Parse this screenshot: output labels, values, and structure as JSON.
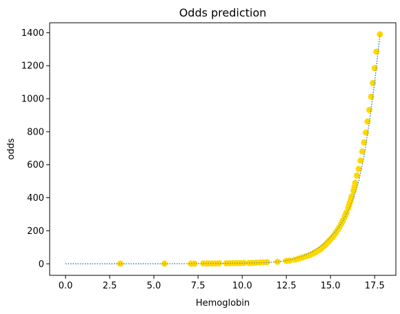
{
  "chart_data": {
    "type": "scatter",
    "title": "Odds prediction",
    "xlabel": "Hemoglobin",
    "ylabel": "odds",
    "xlim": [
      -0.9,
      18.7
    ],
    "ylim": [
      -70,
      1460
    ],
    "xticks": [
      0.0,
      2.5,
      5.0,
      7.5,
      10.0,
      12.5,
      15.0,
      17.5
    ],
    "xtick_labels": [
      "0.0",
      "2.5",
      "5.0",
      "7.5",
      "10.0",
      "12.5",
      "15.0",
      "17.5"
    ],
    "yticks": [
      0,
      200,
      400,
      600,
      800,
      1000,
      1200,
      1400
    ],
    "ytick_labels": [
      "0",
      "200",
      "400",
      "600",
      "800",
      "1000",
      "1200",
      "1400"
    ],
    "grid": false,
    "series": [
      {
        "type": "line",
        "style": "dotted",
        "color": "#1f77b4",
        "x": [
          0.0,
          3.0,
          5.6,
          7.0,
          8.0,
          9.0,
          10.0,
          11.0,
          11.5,
          12.0,
          12.5,
          13.0,
          13.5,
          14.0,
          14.5,
          15.0,
          15.5,
          16.0,
          16.3,
          16.6,
          16.9,
          17.2,
          17.5,
          17.8
        ],
        "y": [
          0,
          0,
          0,
          1,
          2,
          3,
          4,
          6,
          8,
          12,
          20,
          32,
          50,
          75,
          110,
          160,
          225,
          320,
          400,
          500,
          650,
          860,
          1100,
          1390
        ]
      },
      {
        "type": "scatter",
        "color": "#ffd700",
        "x": [
          3.1,
          5.6,
          7.1,
          7.3,
          7.8,
          8.0,
          8.1,
          8.3,
          8.5,
          8.7,
          9.1,
          9.3,
          9.5,
          9.7,
          9.9,
          10.1,
          10.4,
          10.6,
          10.8,
          11.0,
          11.2,
          11.4,
          12.0,
          12.5,
          12.7,
          13.0,
          13.2,
          13.4,
          13.6,
          13.8,
          13.9,
          14.0,
          14.1,
          14.2,
          14.3,
          14.4,
          14.5,
          14.6,
          14.7,
          14.8,
          14.9,
          15.0,
          15.1,
          15.2,
          15.3,
          15.4,
          15.5,
          15.6,
          15.65,
          15.7,
          15.8,
          15.85,
          15.9,
          16.0,
          16.05,
          16.1,
          16.15,
          16.2,
          16.3,
          16.35,
          16.4,
          16.5,
          16.6,
          16.7,
          16.8,
          16.9,
          17.0,
          17.1,
          17.2,
          17.3,
          17.4,
          17.5,
          17.6,
          17.8
        ],
        "y": [
          1,
          1,
          1,
          1,
          2,
          2,
          2,
          2,
          2,
          3,
          3,
          3,
          4,
          4,
          4,
          5,
          5,
          6,
          7,
          8,
          9,
          10,
          12,
          18,
          20,
          25,
          32,
          38,
          45,
          52,
          57,
          62,
          68,
          73,
          80,
          87,
          95,
          105,
          114,
          125,
          136,
          148,
          160,
          173,
          188,
          204,
          222,
          240,
          251,
          262,
          284,
          296,
          310,
          338,
          355,
          372,
          390,
          408,
          442,
          465,
          490,
          535,
          575,
          625,
          680,
          735,
          795,
          862,
          932,
          1012,
          1095,
          1185,
          1285,
          1390
        ]
      }
    ]
  }
}
